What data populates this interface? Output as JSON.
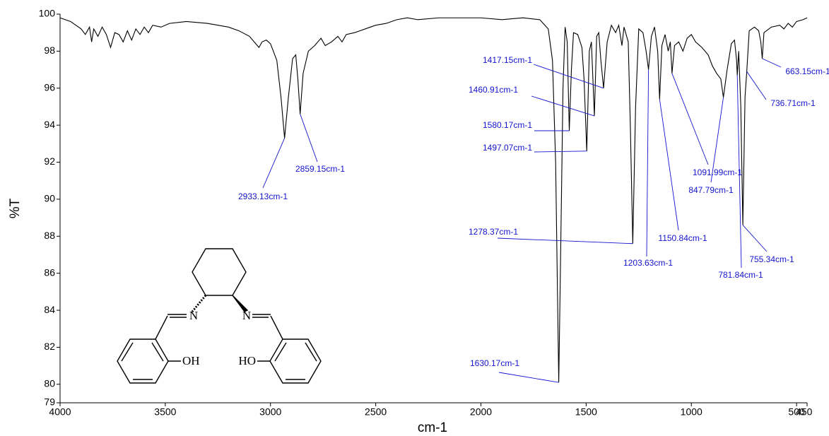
{
  "chart_data": {
    "type": "line",
    "xlabel": "cm-1",
    "ylabel": "%T",
    "xlim": [
      4000,
      450
    ],
    "ylim": [
      79,
      100
    ],
    "xticks": [
      4000,
      3500,
      3000,
      2500,
      2000,
      1500,
      1000,
      500,
      450
    ],
    "yticks": [
      79,
      80,
      82,
      84,
      86,
      88,
      90,
      92,
      94,
      96,
      98,
      100
    ],
    "series": [
      {
        "color": "#000000",
        "x": [
          4000,
          3950,
          3900,
          3880,
          3860,
          3850,
          3840,
          3820,
          3800,
          3780,
          3760,
          3740,
          3720,
          3700,
          3680,
          3660,
          3640,
          3620,
          3600,
          3580,
          3560,
          3520,
          3480,
          3400,
          3300,
          3200,
          3150,
          3100,
          3070,
          3055,
          3040,
          3020,
          3000,
          2970,
          2950,
          2933.13,
          2915,
          2895,
          2880,
          2870,
          2859.15,
          2845,
          2820,
          2790,
          2760,
          2740,
          2710,
          2680,
          2660,
          2640,
          2600,
          2550,
          2500,
          2450,
          2400,
          2350,
          2300,
          2200,
          2100,
          2000,
          1900,
          1800,
          1720,
          1680,
          1660,
          1645,
          1630.17,
          1620,
          1610,
          1600,
          1590,
          1580.17,
          1570,
          1560,
          1540,
          1520,
          1510,
          1497.07,
          1485,
          1475,
          1460.91,
          1450,
          1440,
          1430,
          1417.15,
          1400,
          1380,
          1360,
          1345,
          1330,
          1320,
          1300,
          1290,
          1278.37,
          1265,
          1250,
          1230,
          1215,
          1203.63,
          1190,
          1175,
          1160,
          1150.84,
          1140,
          1125,
          1110,
          1100,
          1091.99,
          1080,
          1060,
          1040,
          1020,
          1000,
          980,
          950,
          920,
          900,
          880,
          860,
          847.79,
          830,
          810,
          795,
          785,
          781.84,
          775,
          765,
          755.34,
          745,
          736.71,
          725,
          700,
          680,
          670,
          663.15,
          655,
          620,
          580,
          560,
          540,
          520,
          500,
          470,
          450
        ],
        "values": [
          99.8,
          99.6,
          99.2,
          98.9,
          99.3,
          98.5,
          99.2,
          98.8,
          99.3,
          98.9,
          98.2,
          99.0,
          98.9,
          98.5,
          99.1,
          98.6,
          99.2,
          98.9,
          99.3,
          99.0,
          99.4,
          99.3,
          99.5,
          99.6,
          99.5,
          99.3,
          99.1,
          98.8,
          98.4,
          98.2,
          98.5,
          98.6,
          98.4,
          97.5,
          95.5,
          93.3,
          95.5,
          97.6,
          97.8,
          96.5,
          94.6,
          96.8,
          98.0,
          98.3,
          98.7,
          98.3,
          98.5,
          98.8,
          98.5,
          98.9,
          99.0,
          99.2,
          99.4,
          99.5,
          99.7,
          99.8,
          99.7,
          99.8,
          99.8,
          99.8,
          99.7,
          99.8,
          99.7,
          99.2,
          97.5,
          92.0,
          80.1,
          88.0,
          96.0,
          99.3,
          98.5,
          93.7,
          97.0,
          99.0,
          98.9,
          98.2,
          96.5,
          92.6,
          98.0,
          98.5,
          94.5,
          98.8,
          99.0,
          97.5,
          96.0,
          98.5,
          99.4,
          99.0,
          99.4,
          98.3,
          99.3,
          98.5,
          94.0,
          87.6,
          95.0,
          99.2,
          99.0,
          98.0,
          97.0,
          98.8,
          99.3,
          98.0,
          95.4,
          98.3,
          98.9,
          98.0,
          98.5,
          96.8,
          98.3,
          98.5,
          98.0,
          98.7,
          98.9,
          98.5,
          98.2,
          97.8,
          97.2,
          96.8,
          96.5,
          95.5,
          97.0,
          98.4,
          98.6,
          97.5,
          96.7,
          98.0,
          95.0,
          88.6,
          95.5,
          96.9,
          99.1,
          99.3,
          99.1,
          98.5,
          97.6,
          99.0,
          99.3,
          99.4,
          99.2,
          99.5,
          99.3,
          99.6,
          99.7,
          99.8
        ]
      }
    ],
    "annotations": [
      {
        "label": "2933.13cm-1",
        "x": 2933.13,
        "y": 93.3
      },
      {
        "label": "2859.15cm-1",
        "x": 2859.15,
        "y": 94.6
      },
      {
        "label": "1630.17cm-1",
        "x": 1630.17,
        "y": 80.1
      },
      {
        "label": "1580.17cm-1",
        "x": 1580.17,
        "y": 93.7
      },
      {
        "label": "1497.07cm-1",
        "x": 1497.07,
        "y": 92.6
      },
      {
        "label": "1460.91cm-1",
        "x": 1460.91,
        "y": 94.5
      },
      {
        "label": "1417.15cm-1",
        "x": 1417.15,
        "y": 96.0
      },
      {
        "label": "1278.37cm-1",
        "x": 1278.37,
        "y": 87.6
      },
      {
        "label": "1203.63cm-1",
        "x": 1203.63,
        "y": 97.0
      },
      {
        "label": "1150.84cm-1",
        "x": 1150.84,
        "y": 95.4
      },
      {
        "label": "1091.99cm-1",
        "x": 1091.99,
        "y": 96.8
      },
      {
        "label": "847.79cm-1",
        "x": 847.79,
        "y": 95.5
      },
      {
        "label": "781.84cm-1",
        "x": 781.84,
        "y": 96.7
      },
      {
        "label": "755.34cm-1",
        "x": 755.34,
        "y": 88.6
      },
      {
        "label": "736.71cm-1",
        "x": 736.71,
        "y": 96.9
      },
      {
        "label": "663.15cm-1",
        "x": 663.15,
        "y": 97.6
      }
    ],
    "structure": {
      "atoms": [
        "N",
        "N",
        "OH",
        "HO"
      ]
    }
  }
}
